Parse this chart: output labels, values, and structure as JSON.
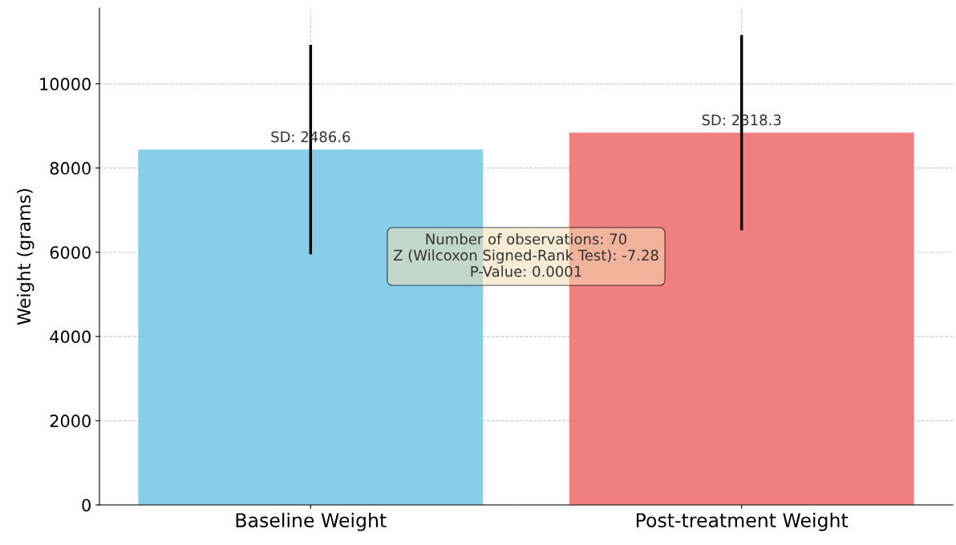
{
  "chart_data": {
    "type": "bar",
    "ylabel": "Weight (grams)",
    "categories": [
      "Baseline Weight",
      "Post-treatment Weight"
    ],
    "values": [
      8440,
      8840
    ],
    "colors": [
      "#87ceeb",
      "#f08080"
    ],
    "errors": [
      2486.6,
      2318.3
    ],
    "ylim": [
      0,
      11800
    ],
    "yticks": [
      0,
      2000,
      4000,
      6000,
      8000,
      10000
    ],
    "grid": true,
    "annotations": [
      {
        "text": "SD: 2486.6",
        "x": "Baseline Weight",
        "y": 8440
      },
      {
        "text": "SD: 2318.3",
        "x": "Post-treatment Weight",
        "y": 8840
      },
      "Number of observations: 70\nZ (Wilcoxon Signed-Rank Test): -7.28\nP-Value: 0.0001"
    ]
  }
}
